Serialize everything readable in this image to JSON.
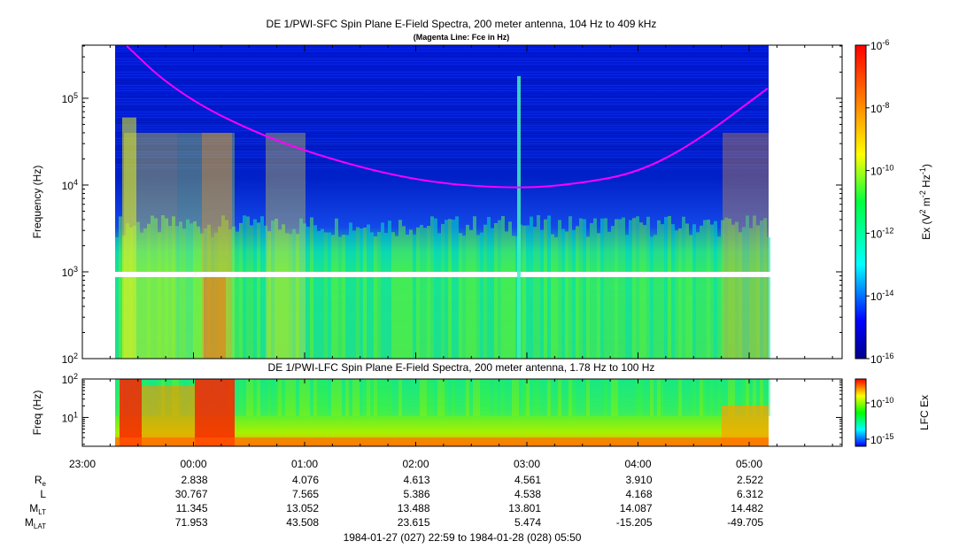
{
  "chart_data": [
    {
      "type": "heatmap",
      "title": "DE 1/PWI-SFC  Spin Plane E-Field Spectra, 200 meter antenna, 104 Hz to 409 kHz",
      "subtitle": "(Magenta Line: Fce in Hz)",
      "ylabel": "Frequency (Hz)",
      "yscale": "log",
      "ylim": [
        100,
        409000
      ],
      "yticks": [
        {
          "value": 100,
          "base": "10",
          "exp": "2"
        },
        {
          "value": 1000,
          "base": "10",
          "exp": "3"
        },
        {
          "value": 10000,
          "base": "10",
          "exp": "4"
        },
        {
          "value": 100000,
          "base": "10",
          "exp": "5"
        }
      ],
      "colorbar": {
        "label_parts": [
          "Ex (V",
          "2",
          " m",
          "-2",
          " Hz",
          "-1",
          ")"
        ],
        "scale": "log",
        "range": [
          1e-16,
          1e-06
        ],
        "ticks": [
          {
            "value": 1e-06,
            "base": "10",
            "exp": "-6"
          },
          {
            "value": 1e-08,
            "base": "10",
            "exp": "-8"
          },
          {
            "value": 1e-10,
            "base": "10",
            "exp": "-10"
          },
          {
            "value": 1e-12,
            "base": "10",
            "exp": "-12"
          },
          {
            "value": 1e-14,
            "base": "10",
            "exp": "-14"
          },
          {
            "value": 1e-16,
            "base": "10",
            "exp": "-16"
          }
        ]
      },
      "fce_line": {
        "color": "#ff00ff",
        "points": [
          {
            "t": "23:24",
            "f": 400000
          },
          {
            "t": "23:45",
            "f": 150000
          },
          {
            "t": "00:15",
            "f": 60000
          },
          {
            "t": "01:00",
            "f": 24000
          },
          {
            "t": "02:00",
            "f": 11000
          },
          {
            "t": "02:55",
            "f": 9000
          },
          {
            "t": "03:30",
            "f": 10500
          },
          {
            "t": "04:00",
            "f": 14000
          },
          {
            "t": "04:30",
            "f": 30000
          },
          {
            "t": "05:10",
            "f": 130000
          }
        ]
      },
      "data_gap_band_hz": [
        870,
        1000
      ]
    },
    {
      "type": "heatmap",
      "title": "DE 1/PWI-LFC  Spin Plane E-Field Spectra, 200 meter antenna, 1.78 Hz to 100 Hz",
      "ylabel": "Freq (Hz)",
      "yscale": "log",
      "ylim": [
        1.78,
        100
      ],
      "yticks": [
        {
          "value": 100,
          "base": "10",
          "exp": "2"
        },
        {
          "value": 10,
          "base": "10",
          "exp": "1"
        }
      ],
      "colorbar": {
        "label": "LFC Ex",
        "scale": "log",
        "ticks": [
          {
            "value": 1e-10,
            "base": "10",
            "exp": "-10"
          },
          {
            "value": 1e-15,
            "base": "10",
            "exp": "-15"
          }
        ]
      }
    }
  ],
  "xaxis": {
    "tick_labels": [
      "23:00",
      "00:00",
      "01:00",
      "02:00",
      "03:00",
      "04:00",
      "05:00"
    ],
    "data_start": "22:59",
    "data_end": "05:50",
    "rows": [
      {
        "name": "R",
        "sub": "e",
        "values": [
          "2.838",
          "4.076",
          "4.613",
          "4.561",
          "3.910",
          "2.522"
        ]
      },
      {
        "name": "L",
        "sub": "",
        "values": [
          "30.767",
          "7.565",
          "5.386",
          "4.538",
          "4.168",
          "6.312"
        ]
      },
      {
        "name": "M",
        "sub": "LT",
        "values": [
          "11.345",
          "13.052",
          "13.488",
          "13.801",
          "14.087",
          "14.482"
        ]
      },
      {
        "name": "M",
        "sub": "LAT",
        "values": [
          "71.953",
          "43.508",
          "23.615",
          "5.474",
          "-15.205",
          "-49.705"
        ]
      }
    ],
    "time_range": "1984-01-27 (027) 22:59 to 1984-01-28 (028) 05:50"
  },
  "colors": {
    "magenta_line": "#ff00ff",
    "frame": "#000000"
  }
}
